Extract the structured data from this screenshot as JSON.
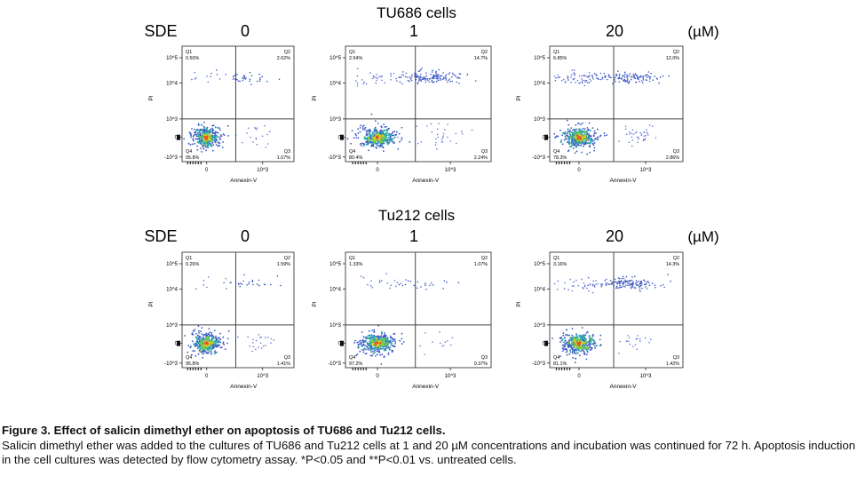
{
  "chart_data": [
    {
      "group": "TU686 cells",
      "row_label": "SDE",
      "unit": "(µM)",
      "panels": [
        {
          "concentration": "0",
          "type": "scatter",
          "xlabel": "Annexin-V",
          "ylabel": "PI",
          "quadrants": {
            "Q1": "0.50%",
            "Q2": "2.62%",
            "Q3": "1.07%",
            "Q4": "95.8%"
          }
        },
        {
          "concentration": "1",
          "type": "scatter",
          "xlabel": "Annexin-V",
          "ylabel": "PI",
          "quadrants": {
            "Q1": "2.54%",
            "Q2": "14.7%",
            "Q3": "2.24%",
            "Q4": "80.4%"
          }
        },
        {
          "concentration": "20",
          "type": "scatter",
          "xlabel": "Annexin-V",
          "ylabel": "PI",
          "quadrants": {
            "Q1": "6.85%",
            "Q2": "12.0%",
            "Q3": "2.86%",
            "Q4": "78.3%"
          }
        }
      ]
    },
    {
      "group": "Tu212 cells",
      "row_label": "SDE",
      "unit": "(µM)",
      "panels": [
        {
          "concentration": "0",
          "type": "scatter",
          "xlabel": "Annexin-V",
          "ylabel": "PI",
          "quadrants": {
            "Q1": "0.26%",
            "Q2": "1.59%",
            "Q3": "1.41%",
            "Q4": "95.8%"
          }
        },
        {
          "concentration": "1",
          "type": "scatter",
          "xlabel": "Annexin-V",
          "ylabel": "PI",
          "quadrants": {
            "Q1": "1.33%",
            "Q2": "1.07%",
            "Q3": "0.37%",
            "Q4": "97.2%"
          }
        },
        {
          "concentration": "20",
          "type": "scatter",
          "xlabel": "Annexin-V",
          "ylabel": "PI",
          "quadrants": {
            "Q1": "3.16%",
            "Q2": "14.3%",
            "Q3": "1.42%",
            "Q4": "81.1%"
          }
        }
      ]
    }
  ],
  "axis": {
    "y_ticks": [
      "10^5",
      "10^4",
      "10^3",
      "0",
      "-10^3"
    ],
    "x_ticks": [
      "0",
      "10^3"
    ]
  },
  "caption": {
    "title": "Figure 3. Effect of salicin dimethyl ether on apoptosis of TU686 and Tu212 cells.",
    "body": "Salicin dimethyl ether was added to the cultures of TU686 and Tu212 cells at 1 and 20 µM concentrations and incubation was continued for 72 h. Apoptosis induction in the cell cultures was detected by flow cytometry assay. *P<0.05 and **P<0.01 vs. untreated cells."
  }
}
